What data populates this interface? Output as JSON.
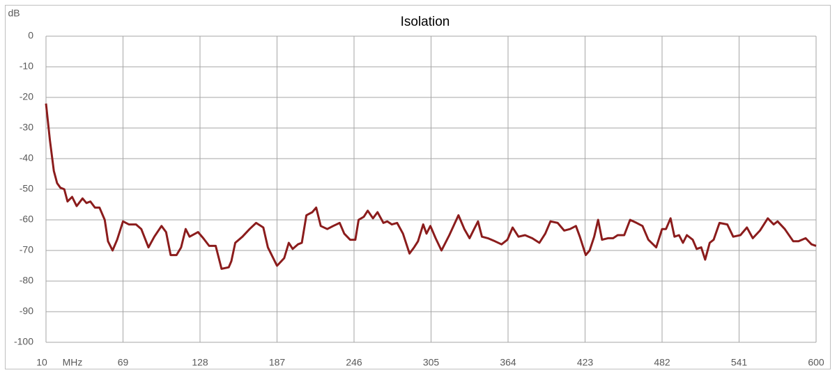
{
  "chart_data": {
    "type": "line",
    "title": "Isolation",
    "xlabel": "MHz",
    "ylabel": "dB",
    "x": [
      10,
      13,
      16,
      18.5,
      21,
      24,
      26.5,
      30,
      33.5,
      38,
      41,
      44,
      47.5,
      51,
      55,
      57.5,
      61,
      64.5,
      69,
      73.5,
      79,
      83,
      88.5,
      93,
      98.5,
      102,
      105.5,
      110,
      113.5,
      117,
      120,
      126.5,
      130.5,
      135,
      140,
      144.5,
      150,
      152,
      155,
      160.5,
      166,
      171,
      176.5,
      180,
      187,
      192.5,
      196,
      199,
      203,
      206,
      209.5,
      214,
      217,
      220.5,
      225.5,
      230,
      235,
      238.5,
      243,
      247,
      249.5,
      253.5,
      256.5,
      260.5,
      264,
      268.5,
      271.5,
      275,
      279,
      283.5,
      288.5,
      292,
      295,
      299,
      301.5,
      304.5,
      308.5,
      313,
      319,
      326,
      330.5,
      334.5,
      338,
      341,
      344,
      348.5,
      354,
      359,
      363.5,
      367.5,
      372,
      377,
      382.5,
      388,
      392.5,
      396.5,
      402,
      407,
      411.5,
      416,
      419,
      423.5,
      426.5,
      430,
      433,
      436,
      440.5,
      444.5,
      448,
      453,
      457.5,
      462.5,
      467,
      471.5,
      477.5,
      482,
      485,
      488.5,
      491.5,
      495,
      498,
      501,
      505.5,
      508.5,
      512,
      515,
      518.5,
      521.5,
      526,
      532,
      536.5,
      542,
      547,
      551.5,
      557,
      563,
      567.5,
      570.5,
      576,
      582.5,
      586.5,
      592,
      596.5,
      600
    ],
    "series": [
      {
        "name": "Isolation",
        "color": "#8b1c1c",
        "values": [
          -22,
          -34,
          -44,
          -48,
          -49.5,
          -50,
          -54,
          -52.5,
          -55.5,
          -53,
          -54.5,
          -54,
          -56,
          -56,
          -60,
          -67,
          -70,
          -66.5,
          -60.5,
          -61.5,
          -61.5,
          -63,
          -69,
          -65.5,
          -62,
          -64,
          -71.5,
          -71.5,
          -69,
          -63,
          -65.5,
          -64,
          -66,
          -68.5,
          -68.5,
          -76,
          -75.5,
          -73.5,
          -67.5,
          -65.5,
          -63,
          -61,
          -62.5,
          -69,
          -75,
          -72.5,
          -67.5,
          -69.5,
          -68,
          -67.5,
          -58.5,
          -57.5,
          -56,
          -62,
          -63,
          -62,
          -61,
          -64.5,
          -66.5,
          -66.5,
          -60,
          -59,
          -57,
          -59.5,
          -57.5,
          -61,
          -60.5,
          -61.5,
          -61,
          -64.5,
          -71,
          -69,
          -67,
          -61.5,
          -64.5,
          -62,
          -66,
          -70,
          -65,
          -58.5,
          -63,
          -66,
          -63,
          -60.5,
          -65.5,
          -66,
          -67,
          -68,
          -66.5,
          -62.5,
          -65.5,
          -65,
          -66,
          -67.5,
          -64.5,
          -60.5,
          -61,
          -63.5,
          -63,
          -62,
          -65.5,
          -71.5,
          -70,
          -65.5,
          -60,
          -66.5,
          -66,
          -66,
          -65,
          -65,
          -60,
          -61,
          -62,
          -66.5,
          -69,
          -63,
          -63,
          -59.5,
          -65.5,
          -65,
          -67.5,
          -65,
          -66.5,
          -69.5,
          -69,
          -73,
          -67.5,
          -66.5,
          -61,
          -61.5,
          -65.5,
          -65,
          -62.5,
          -66,
          -63.5,
          -59.5,
          -61.5,
          -60.5,
          -63,
          -67,
          -67,
          -66,
          -68,
          -68.5
        ]
      }
    ],
    "xlim": [
      10,
      600
    ],
    "xticks": [
      10,
      69,
      128,
      187,
      246,
      305,
      364,
      423,
      482,
      541,
      600
    ],
    "ylim": [
      -100,
      0
    ],
    "yticks": [
      0,
      -10,
      -20,
      -30,
      -40,
      -50,
      -60,
      -70,
      -80,
      -90,
      -100
    ],
    "grid": true
  }
}
